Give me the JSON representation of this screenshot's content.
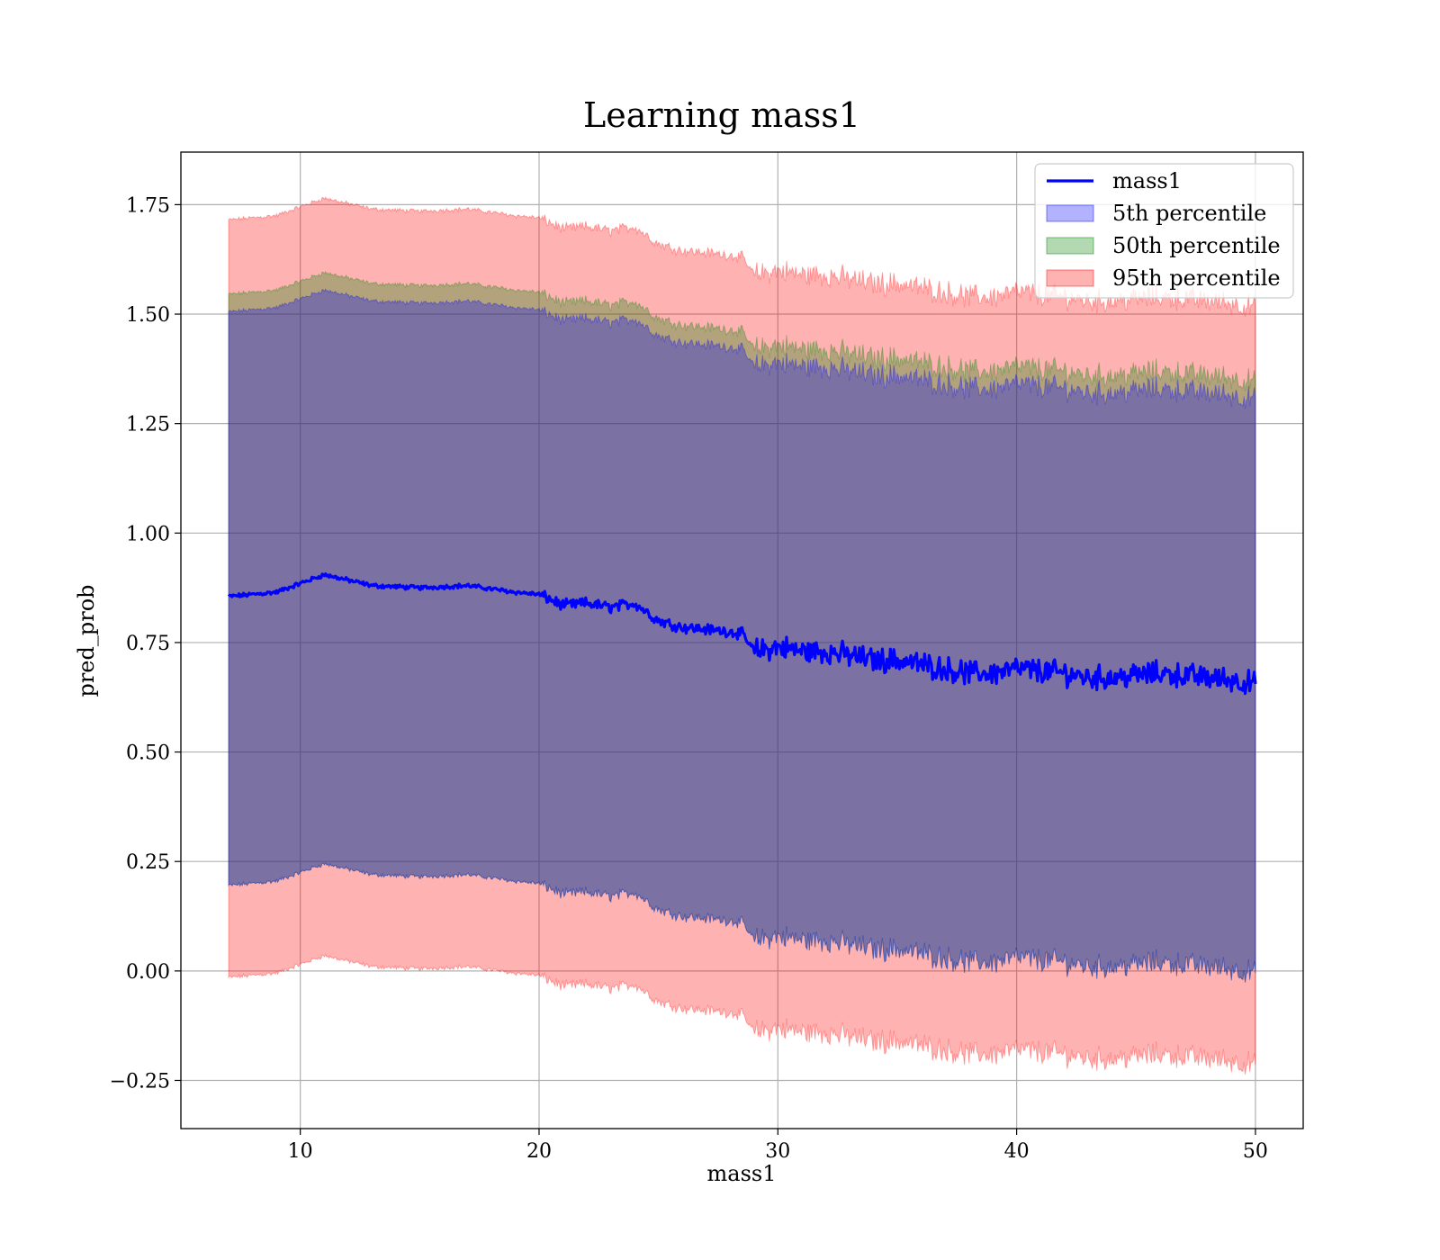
{
  "chart_data": {
    "type": "area",
    "title": "Learning mass1",
    "xlabel": "mass1",
    "ylabel": "pred_prob",
    "xlim": [
      5,
      52
    ],
    "ylim": [
      -0.36,
      1.87
    ],
    "grid": true,
    "legend_position": "top-right",
    "x_ticks": [
      10,
      20,
      30,
      40,
      50
    ],
    "x_tick_labels": [
      "10",
      "20",
      "30",
      "40",
      "50"
    ],
    "y_ticks": [
      -0.25,
      0.0,
      0.25,
      0.5,
      0.75,
      1.0,
      1.25,
      1.5,
      1.75
    ],
    "y_tick_labels": [
      "−0.25",
      "0.00",
      "0.25",
      "0.50",
      "0.75",
      "1.00",
      "1.25",
      "1.50",
      "1.75"
    ],
    "x_range": [
      7,
      50
    ],
    "trend_anchors": {
      "x": [
        7,
        9,
        11,
        13,
        15,
        17,
        19,
        20,
        21,
        22,
        23,
        24,
        25,
        26,
        27,
        28,
        28.5,
        29,
        30,
        31,
        32,
        33,
        34,
        35,
        36,
        37,
        38,
        39,
        40,
        41,
        42,
        43,
        44,
        45,
        46,
        47,
        48,
        49,
        50
      ],
      "y": [
        0.855,
        0.865,
        0.905,
        0.88,
        0.875,
        0.88,
        0.865,
        0.86,
        0.835,
        0.84,
        0.83,
        0.84,
        0.8,
        0.785,
        0.78,
        0.775,
        0.77,
        0.73,
        0.74,
        0.73,
        0.73,
        0.72,
        0.71,
        0.71,
        0.7,
        0.69,
        0.68,
        0.68,
        0.69,
        0.685,
        0.68,
        0.67,
        0.67,
        0.675,
        0.68,
        0.675,
        0.67,
        0.665,
        0.655
      ]
    },
    "series": [
      {
        "name": "mass1",
        "kind": "line",
        "color": "#0000ff"
      },
      {
        "name": "5th percentile",
        "kind": "band",
        "color": "#0000ff",
        "opacity": 0.3,
        "lower_offset": -0.66,
        "upper_offset": 0.65
      },
      {
        "name": "50th percentile",
        "kind": "band",
        "color": "#008000",
        "opacity": 0.3,
        "lower_offset": -0.66,
        "upper_offset": 0.69
      },
      {
        "name": "95th percentile",
        "kind": "band",
        "color": "#ff0000",
        "opacity": 0.3,
        "lower_offset": -0.87,
        "upper_offset": 0.86
      }
    ]
  }
}
